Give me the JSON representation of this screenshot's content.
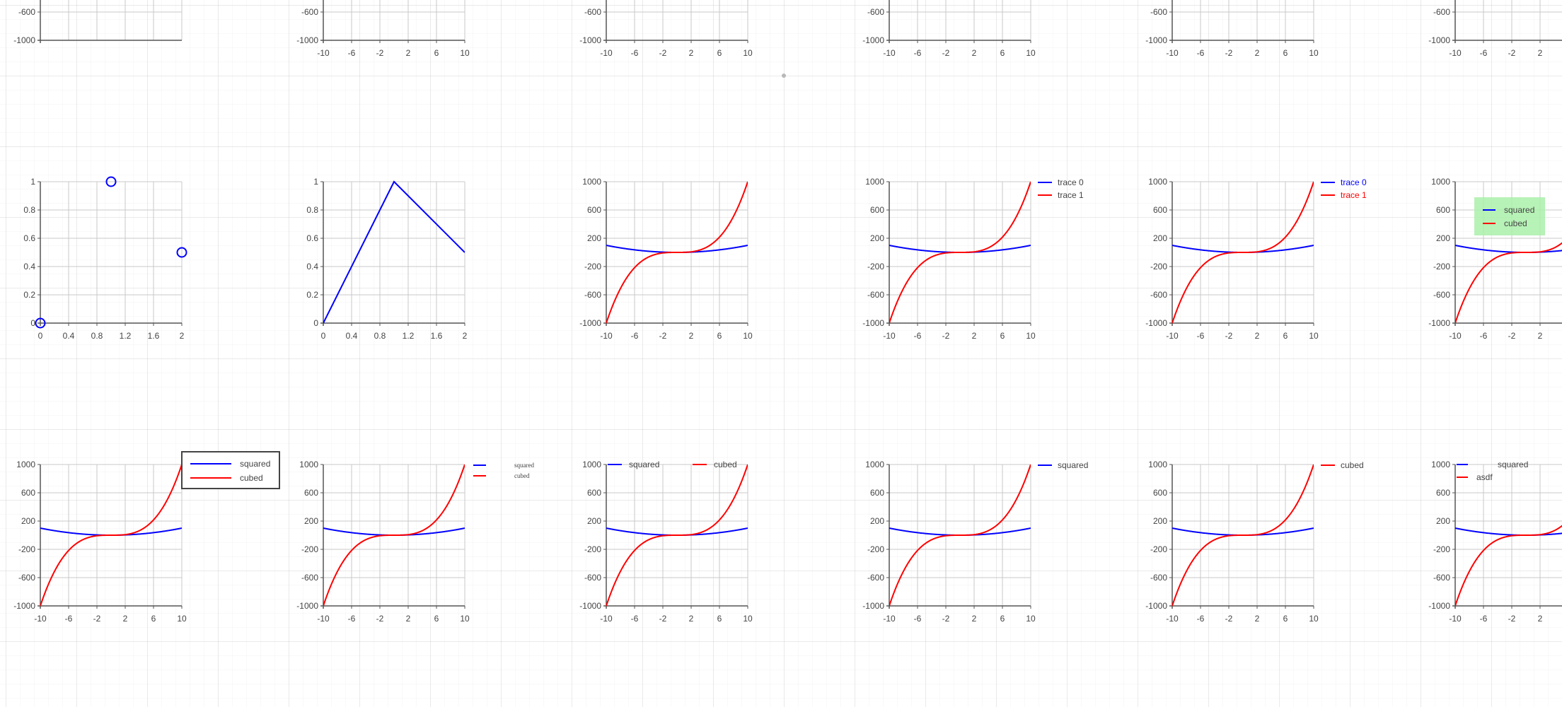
{
  "colors": {
    "blue": "#0000ff",
    "red": "#ff0000",
    "axis": "#555555",
    "grid": "#c8c8c8",
    "tick_text": "#444444"
  },
  "chart_data": [
    {
      "type": "line",
      "series": [
        {
          "name": "",
          "color": "blue",
          "function": "squared"
        }
      ],
      "xlim": [
        -10,
        10
      ],
      "ylim": [
        -1000,
        1000
      ],
      "yticks": [
        -1000,
        -600
      ],
      "xticks": [],
      "partially_visible": true
    },
    {
      "type": "line",
      "series": [
        {
          "name": "",
          "color": "blue",
          "function": "squared"
        }
      ],
      "xlim": [
        -10,
        10
      ],
      "ylim": [
        -1000,
        1000
      ],
      "yticks": [
        -1000,
        -600
      ],
      "xticks": [
        -10,
        -6,
        -2,
        2,
        6,
        10
      ],
      "partially_visible": true
    },
    {
      "type": "line",
      "series": [
        {
          "name": "",
          "color": "blue",
          "function": "squared"
        }
      ],
      "xlim": [
        -10,
        10
      ],
      "ylim": [
        -1000,
        1000
      ],
      "yticks": [
        -1000,
        -600
      ],
      "xticks": [
        -10,
        -6,
        -2,
        2,
        6,
        10
      ],
      "partially_visible": true
    },
    {
      "type": "line",
      "series": [
        {
          "name": "",
          "color": "blue",
          "function": "squared"
        }
      ],
      "xlim": [
        -10,
        10
      ],
      "ylim": [
        -1000,
        1000
      ],
      "yticks": [
        -1000,
        -600
      ],
      "xticks": [
        -10,
        -6,
        -2,
        2,
        6,
        10
      ],
      "partially_visible": true
    },
    {
      "type": "line",
      "series": [
        {
          "name": "",
          "color": "blue",
          "function": "squared"
        }
      ],
      "xlim": [
        -10,
        10
      ],
      "ylim": [
        -1000,
        1000
      ],
      "yticks": [
        -1000,
        -600
      ],
      "xticks": [
        -10,
        -6,
        -2,
        2,
        6,
        10
      ],
      "partially_visible": true
    },
    {
      "type": "line",
      "series": [
        {
          "name": "",
          "color": "blue",
          "function": "squared"
        }
      ],
      "xlim": [
        -10,
        10
      ],
      "ylim": [
        -1000,
        1000
      ],
      "yticks": [
        -1000,
        -600
      ],
      "xticks": [
        -10,
        -6,
        -2,
        2
      ],
      "partially_visible": true
    },
    {
      "type": "scatter",
      "series": [
        {
          "name": "",
          "color": "blue",
          "x": [
            0,
            1,
            2
          ],
          "y": [
            0,
            1,
            0.5
          ]
        }
      ],
      "xlim": [
        0,
        2
      ],
      "ylim": [
        0,
        1
      ],
      "yticks": [
        0,
        0.2,
        0.4,
        0.6,
        0.8,
        1
      ],
      "xticks": [
        0,
        0.4,
        0.8,
        1.2,
        1.6,
        2
      ]
    },
    {
      "type": "line",
      "series": [
        {
          "name": "",
          "color": "blue",
          "x": [
            0,
            1,
            2
          ],
          "y": [
            0,
            1,
            0.5
          ]
        }
      ],
      "xlim": [
        0,
        2
      ],
      "ylim": [
        0,
        1
      ],
      "yticks": [
        0,
        0.2,
        0.4,
        0.6,
        0.8,
        1
      ],
      "xticks": [
        0,
        0.4,
        0.8,
        1.2,
        1.6,
        2
      ]
    },
    {
      "type": "line",
      "series": [
        {
          "name": "",
          "color": "blue",
          "function": "squared"
        },
        {
          "name": "",
          "color": "red",
          "function": "cubed"
        }
      ],
      "xlim": [
        -10,
        10
      ],
      "ylim": [
        -1000,
        1000
      ],
      "yticks": [
        -1000,
        -600,
        -200,
        200,
        600,
        1000
      ],
      "xticks": [
        -10,
        -6,
        -2,
        2,
        6,
        10
      ]
    },
    {
      "type": "line",
      "series": [
        {
          "name": "trace  0",
          "color": "blue",
          "function": "squared"
        },
        {
          "name": "trace  1",
          "color": "red",
          "function": "cubed"
        }
      ],
      "xlim": [
        -10,
        10
      ],
      "ylim": [
        -1000,
        1000
      ],
      "yticks": [
        -1000,
        -600,
        -200,
        200,
        600,
        1000
      ],
      "xticks": [
        -10,
        -6,
        -2,
        2,
        6,
        10
      ],
      "legend": {
        "placement": "outside-right-top",
        "text_color": "series"
      }
    },
    {
      "type": "line",
      "series": [
        {
          "name": "trace  0",
          "color": "blue",
          "function": "squared"
        },
        {
          "name": "trace  1",
          "color": "red",
          "function": "cubed"
        }
      ],
      "xlim": [
        -10,
        10
      ],
      "ylim": [
        -1000,
        1000
      ],
      "yticks": [
        -1000,
        -600,
        -200,
        200,
        600,
        1000
      ],
      "xticks": [
        -10,
        -6,
        -2,
        2,
        6,
        10
      ],
      "legend": {
        "placement": "outside-right-top",
        "text_color": "series-colored"
      }
    },
    {
      "type": "line",
      "series": [
        {
          "name": "squared",
          "color": "blue",
          "function": "squared"
        },
        {
          "name": "cubed",
          "color": "red",
          "function": "cubed"
        }
      ],
      "xlim": [
        -10,
        10
      ],
      "ylim": [
        -1000,
        1000
      ],
      "yticks": [
        -1000,
        -600,
        -200,
        200,
        600,
        1000
      ],
      "xticks": [
        -10,
        -6,
        -2,
        2
      ],
      "legend": {
        "placement": "top-center",
        "background": "#aaf0aa"
      },
      "partially_visible": true
    },
    {
      "type": "line",
      "series": [
        {
          "name": "squared",
          "color": "blue",
          "function": "squared"
        },
        {
          "name": "cubed",
          "color": "red",
          "function": "cubed"
        }
      ],
      "xlim": [
        -10,
        10
      ],
      "ylim": [
        -1000,
        1000
      ],
      "yticks": [
        -1000,
        -600,
        -200,
        200,
        600,
        1000
      ],
      "xticks": [
        -10,
        -6,
        -2,
        2,
        6,
        10
      ],
      "legend": {
        "placement": "outside-right-top",
        "border": true
      }
    },
    {
      "type": "line",
      "series": [
        {
          "name": "squared",
          "color": "blue",
          "function": "squared"
        },
        {
          "name": "cubed",
          "color": "red",
          "function": "cubed"
        }
      ],
      "xlim": [
        -10,
        10
      ],
      "ylim": [
        -1000,
        1000
      ],
      "yticks": [
        -1000,
        -600,
        -200,
        200,
        600,
        1000
      ],
      "xticks": [
        -10,
        -6,
        -2,
        2,
        6,
        10
      ],
      "legend": {
        "placement": "outside-right-top",
        "font": "serif-small"
      }
    },
    {
      "type": "line",
      "series": [
        {
          "name": "squared",
          "color": "blue",
          "function": "squared"
        },
        {
          "name": "cubed",
          "color": "red",
          "function": "cubed"
        }
      ],
      "xlim": [
        -10,
        10
      ],
      "ylim": [
        -1000,
        1000
      ],
      "yticks": [
        -1000,
        -600,
        -200,
        200,
        600,
        1000
      ],
      "xticks": [
        -10,
        -6,
        -2,
        2,
        6,
        10
      ],
      "legend": {
        "placement": "top-horizontal"
      }
    },
    {
      "type": "line",
      "series": [
        {
          "name": "squared",
          "color": "blue",
          "function": "squared"
        },
        {
          "name": "",
          "color": "red",
          "function": "cubed"
        }
      ],
      "xlim": [
        -10,
        10
      ],
      "ylim": [
        -1000,
        1000
      ],
      "yticks": [
        -1000,
        -600,
        -200,
        200,
        600,
        1000
      ],
      "xticks": [
        -10,
        -6,
        -2,
        2,
        6,
        10
      ],
      "legend": {
        "placement": "outside-right-top"
      }
    },
    {
      "type": "line",
      "series": [
        {
          "name": "",
          "color": "blue",
          "function": "squared"
        },
        {
          "name": "cubed",
          "color": "red",
          "function": "cubed"
        }
      ],
      "xlim": [
        -10,
        10
      ],
      "ylim": [
        -1000,
        1000
      ],
      "yticks": [
        -1000,
        -600,
        -200,
        200,
        600,
        1000
      ],
      "xticks": [
        -10,
        -6,
        -2,
        2,
        6,
        10
      ],
      "legend": {
        "placement": "outside-right-top"
      }
    },
    {
      "type": "line",
      "series": [
        {
          "name": "squared",
          "color": "blue",
          "function": "squared"
        },
        {
          "name": "asdf",
          "color": "red",
          "function": "cubed"
        }
      ],
      "xlim": [
        -10,
        10
      ],
      "ylim": [
        -1000,
        1000
      ],
      "yticks": [
        -1000,
        -600,
        -200,
        200,
        600,
        1000
      ],
      "xticks": [
        -10,
        -6,
        -2,
        2
      ],
      "legend": {
        "placement": "top-left-inside"
      },
      "partially_visible": true
    }
  ]
}
